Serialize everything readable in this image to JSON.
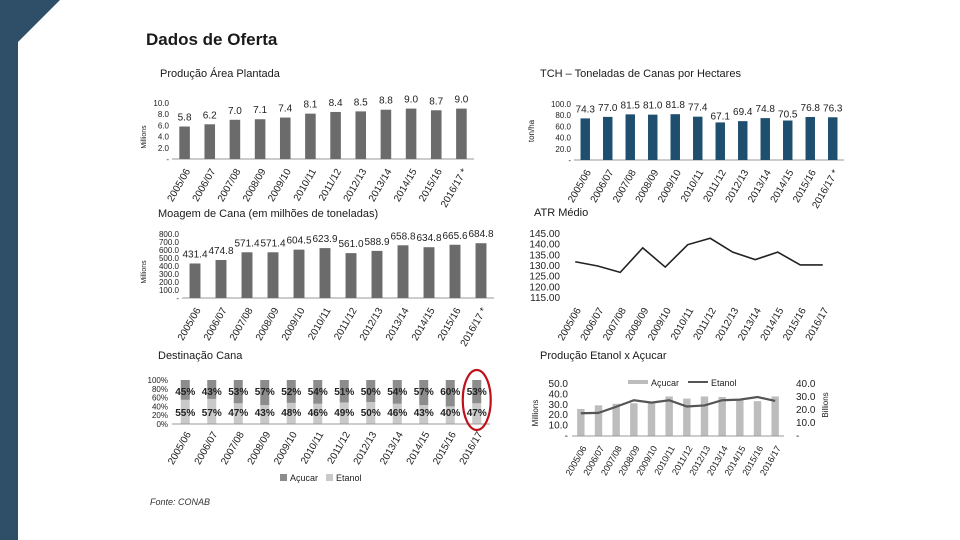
{
  "page_title": "Dados de Oferta",
  "footnote": "Fonte: CONAB",
  "chart_data": [
    {
      "id": "area",
      "type": "bar",
      "title": "Produção Área Plantada",
      "ylabel": "Millions",
      "categories": [
        "2005/06",
        "2006/07",
        "2007/08",
        "2008/09",
        "2009/10",
        "2010/11",
        "2011/12",
        "2012/13",
        "2013/14",
        "2014/15",
        "2015/16",
        "2016/17 *"
      ],
      "values": [
        5.8,
        6.2,
        7.0,
        7.1,
        7.4,
        8.1,
        8.4,
        8.5,
        8.8,
        9.0,
        8.7,
        9.0
      ],
      "value_labels": [
        "5.8",
        "6.2",
        "7.0",
        "7.1",
        "7.4",
        "8.1",
        "8.4",
        "8.5",
        "8.8",
        "9.0",
        "8.7",
        "9.0"
      ],
      "yticks": [
        "-",
        "2.0",
        "4.0",
        "6.0",
        "8.0",
        "10.0"
      ],
      "ylim": [
        0,
        10
      ],
      "colors": {
        "bar": "#6b6b6b"
      }
    },
    {
      "id": "tch",
      "type": "bar",
      "title": "TCH – Toneladas de Canas por Hectares",
      "ylabel": "ton/ha",
      "categories": [
        "2005/06",
        "2006/07",
        "2007/08",
        "2008/09",
        "2009/10",
        "2010/11",
        "2011/12",
        "2012/13",
        "2013/14",
        "2014/15",
        "2015/16",
        "2016/17 *"
      ],
      "values": [
        74.3,
        77.0,
        81.5,
        81.0,
        81.8,
        77.4,
        67.1,
        69.4,
        74.8,
        70.5,
        76.8,
        76.3
      ],
      "value_labels": [
        "74.3",
        "77.0",
        "81.5",
        "81.0",
        "81.8",
        "77.4",
        "67.1",
        "69.4",
        "74.8",
        "70.5",
        "76.8",
        "76.3"
      ],
      "yticks": [
        "-",
        "20.0",
        "40.0",
        "60.0",
        "80.0",
        "100.0"
      ],
      "ylim": [
        0,
        100
      ],
      "colors": {
        "bar": "#1f4f6e"
      }
    },
    {
      "id": "moagem",
      "type": "bar",
      "title": "Moagem de Cana (em milhões de toneladas)",
      "ylabel": "Millions",
      "categories": [
        "2005/06",
        "2006/07",
        "2007/08",
        "2008/09",
        "2009/10",
        "2010/11",
        "2011/12",
        "2012/13",
        "2013/14",
        "2014/15",
        "2015/16",
        "2016/17 *"
      ],
      "values": [
        431.4,
        474.8,
        571.4,
        571.4,
        604.5,
        623.9,
        561.0,
        588.9,
        658.8,
        634.8,
        665.6,
        684.8
      ],
      "value_labels": [
        "431.4",
        "474.8",
        "571.4",
        "571.4",
        "604.5",
        "623.9",
        "561.0",
        "588.9",
        "658.8",
        "634.8",
        "665.6",
        "684.8"
      ],
      "yticks": [
        "-",
        "100.0",
        "200.0",
        "300.0",
        "400.0",
        "500.0",
        "600.0",
        "700.0",
        "800.0"
      ],
      "ylim": [
        0,
        800
      ],
      "colors": {
        "bar": "#6b6b6b"
      }
    },
    {
      "id": "atr",
      "type": "line",
      "title": "ATR Médio",
      "categories": [
        "2005/06",
        "2006/07",
        "2007/08",
        "2008/09",
        "2009/10",
        "2010/11",
        "2011/12",
        "2012/13",
        "2013/14",
        "2014/15",
        "2015/16",
        "2016/17"
      ],
      "values": [
        132.0,
        130.0,
        127.0,
        138.5,
        129.5,
        140.0,
        143.0,
        136.5,
        133.0,
        136.5,
        130.5,
        130.5
      ],
      "yticks": [
        "115.00",
        "120.00",
        "125.00",
        "130.00",
        "135.00",
        "140.00",
        "145.00"
      ],
      "ylim": [
        115,
        145
      ],
      "colors": {
        "line": "#222222"
      }
    },
    {
      "id": "destinacao",
      "type": "bar",
      "stacked": true,
      "title": "Destinação Cana",
      "categories": [
        "2005/06",
        "2006/07",
        "2007/08",
        "2008/09",
        "2009/10",
        "2010/11",
        "2011/12",
        "2012/13",
        "2013/14",
        "2014/15",
        "2015/16",
        "2016/17"
      ],
      "series": [
        {
          "name": "Açucar",
          "values": [
            45,
            43,
            53,
            57,
            52,
            54,
            51,
            50,
            54,
            57,
            60,
            53
          ],
          "value_labels": [
            "45%",
            "43%",
            "53%",
            "57%",
            "52%",
            "54%",
            "51%",
            "50%",
            "54%",
            "57%",
            "60%",
            "53%"
          ]
        },
        {
          "name": "Etanol",
          "values": [
            55,
            57,
            47,
            43,
            48,
            46,
            49,
            50,
            46,
            43,
            40,
            47
          ],
          "value_labels": [
            "55%",
            "57%",
            "47%",
            "43%",
            "48%",
            "46%",
            "49%",
            "50%",
            "46%",
            "43%",
            "40%",
            "47%"
          ]
        }
      ],
      "yticks": [
        "0%",
        "20%",
        "40%",
        "60%",
        "80%",
        "100%"
      ],
      "ylim": [
        0,
        100
      ],
      "legend": "bottom",
      "colors": {
        "acucar": "#8c8c8c",
        "etanol": "#c9c9c9",
        "highlight": "#c0101a"
      }
    },
    {
      "id": "producao",
      "type": "bar",
      "title": "Produção Etanol x Açucar",
      "ylabel_left": "Millions",
      "ylabel_right": "Billions",
      "categories": [
        "2005/06",
        "2006/07",
        "2007/08",
        "2008/09",
        "2009/10",
        "2010/11",
        "2011/12",
        "2012/13",
        "2013/14",
        "2014/15",
        "2015/16",
        "2016/17"
      ],
      "series": [
        {
          "name": "Açucar",
          "type": "bar",
          "values": [
            26.0,
            29.5,
            31.0,
            31.5,
            33.0,
            38.0,
            36.0,
            38.0,
            37.5,
            35.5,
            33.5,
            38.0
          ]
        },
        {
          "name": "Etanol",
          "type": "line",
          "values": [
            17.5,
            17.8,
            22.5,
            27.5,
            25.7,
            27.5,
            22.7,
            23.5,
            27.5,
            28.0,
            30.0,
            27.0
          ]
        }
      ],
      "yticks_left": [
        "-",
        "10.0",
        "20.0",
        "30.0",
        "40.0",
        "50.0"
      ],
      "yticks_right": [
        "-",
        "10.0",
        "20.0",
        "30.0",
        "40.0"
      ],
      "ylim_left": [
        0,
        50
      ],
      "ylim_right": [
        0,
        40
      ],
      "legend": "top",
      "colors": {
        "bar": "#bdbdbd",
        "line": "#555555"
      }
    }
  ]
}
